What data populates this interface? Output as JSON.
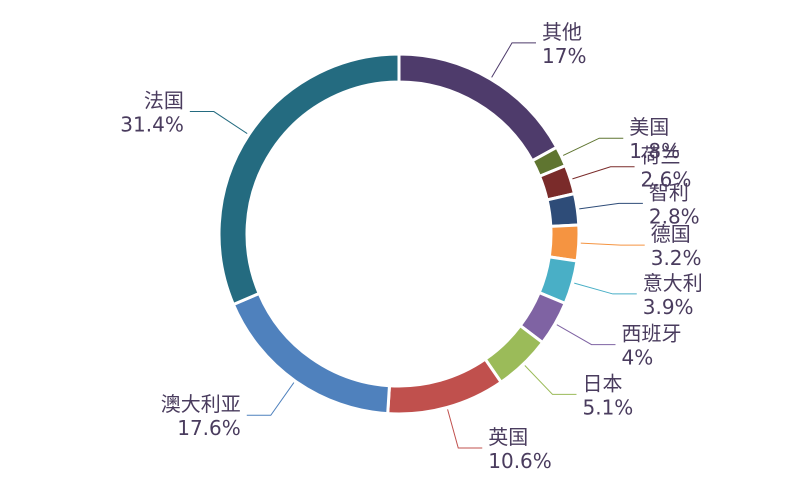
{
  "chart_data": {
    "type": "pie",
    "variant": "donut",
    "start_angle_deg": 0,
    "direction": "clockwise",
    "slices": [
      {
        "label": "其他",
        "value": 17,
        "value_label": "17%",
        "color": "#4e3b6b"
      },
      {
        "label": "美国",
        "value": 1.8,
        "value_label": "1.8%",
        "color": "#5f7530"
      },
      {
        "label": "荷兰",
        "value": 2.6,
        "value_label": "2.6%",
        "color": "#7a2b2a"
      },
      {
        "label": "智利",
        "value": 2.8,
        "value_label": "2.8%",
        "color": "#2e4c78"
      },
      {
        "label": "德国",
        "value": 3.2,
        "value_label": "3.2%",
        "color": "#f59441"
      },
      {
        "label": "意大利",
        "value": 3.9,
        "value_label": "3.9%",
        "color": "#49afc6"
      },
      {
        "label": "西班牙",
        "value": 4,
        "value_label": "4%",
        "color": "#7f63a3"
      },
      {
        "label": "日本",
        "value": 5.1,
        "value_label": "5.1%",
        "color": "#9bbb59"
      },
      {
        "label": "英国",
        "value": 10.6,
        "value_label": "10.6%",
        "color": "#c0504d"
      },
      {
        "label": "澳大利亚",
        "value": 17.6,
        "value_label": "17.6%",
        "color": "#4f81bd"
      },
      {
        "label": "法国",
        "value": 31.4,
        "value_label": "31.4%",
        "color": "#246b80"
      }
    ]
  }
}
